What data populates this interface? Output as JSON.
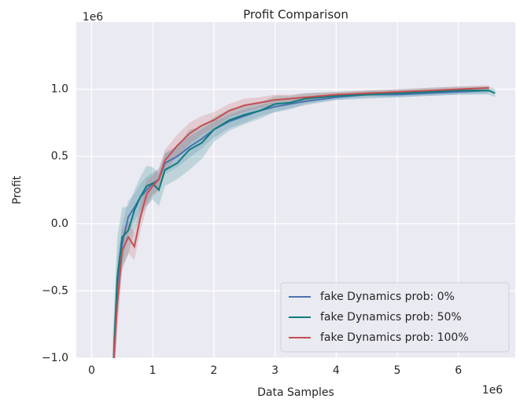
{
  "chart_data": {
    "type": "line",
    "title": "Profit Comparison",
    "xlabel": "Data Samples",
    "ylabel": "Profit",
    "x_offset_label": "1e6",
    "y_offset_label": "1e6",
    "xlim": [
      -0.25,
      6.93
    ],
    "ylim": [
      -1.0,
      1.5
    ],
    "xticks": [
      0,
      1,
      2,
      3,
      4,
      5,
      6
    ],
    "yticks": [
      {
        "value": -1.0,
        "label": "−1.0"
      },
      {
        "value": -0.5,
        "label": "−0.5"
      },
      {
        "value": 0.0,
        "label": "0.0"
      },
      {
        "value": 0.5,
        "label": "0.5"
      },
      {
        "value": 1.0,
        "label": "1.0"
      }
    ],
    "grid": true,
    "legend": "lower right",
    "series": [
      {
        "name": "fake Dynamics prob: 0%",
        "color": "#4c72b0",
        "x": [
          0.35,
          0.42,
          0.5,
          0.6,
          0.7,
          0.8,
          0.9,
          1.0,
          1.1,
          1.2,
          1.4,
          1.6,
          1.8,
          2.0,
          2.25,
          2.5,
          2.75,
          3.0,
          3.25,
          3.5,
          4.0,
          4.5,
          5.0,
          5.5,
          6.0,
          6.5
        ],
        "values": [
          -1.1,
          -0.45,
          -0.15,
          0.05,
          0.12,
          0.2,
          0.25,
          0.3,
          0.33,
          0.45,
          0.5,
          0.57,
          0.63,
          0.7,
          0.76,
          0.8,
          0.84,
          0.87,
          0.89,
          0.91,
          0.94,
          0.96,
          0.96,
          0.97,
          0.98,
          0.99
        ],
        "lower": [
          -1.3,
          -0.65,
          -0.3,
          -0.07,
          0.02,
          0.1,
          0.15,
          0.22,
          0.25,
          0.37,
          0.42,
          0.49,
          0.56,
          0.64,
          0.71,
          0.75,
          0.8,
          0.83,
          0.86,
          0.88,
          0.92,
          0.94,
          0.94,
          0.95,
          0.96,
          0.97
        ],
        "upper": [
          -0.9,
          -0.25,
          0,
          0.17,
          0.22,
          0.3,
          0.35,
          0.38,
          0.41,
          0.53,
          0.58,
          0.65,
          0.7,
          0.76,
          0.81,
          0.85,
          0.88,
          0.91,
          0.92,
          0.94,
          0.96,
          0.98,
          0.98,
          0.99,
          1.0,
          1.01
        ]
      },
      {
        "name": "fake Dynamics prob: 50%",
        "color": "#0e7c7b",
        "x": [
          0.35,
          0.42,
          0.5,
          0.6,
          0.7,
          0.8,
          0.9,
          1.0,
          1.1,
          1.2,
          1.4,
          1.6,
          1.8,
          2.0,
          2.25,
          2.5,
          2.75,
          3.0,
          3.25,
          3.5,
          4.0,
          4.5,
          5.0,
          5.5,
          6.0,
          6.5,
          6.6
        ],
        "values": [
          -1.1,
          -0.4,
          -0.1,
          -0.05,
          0.1,
          0.2,
          0.28,
          0.3,
          0.25,
          0.4,
          0.45,
          0.55,
          0.6,
          0.7,
          0.77,
          0.81,
          0.84,
          0.89,
          0.9,
          0.93,
          0.95,
          0.96,
          0.97,
          0.98,
          0.99,
          0.99,
          0.97
        ],
        "lower": [
          -1.4,
          -0.7,
          -0.32,
          -0.23,
          -0.05,
          0.05,
          0.13,
          0.18,
          0.13,
          0.28,
          0.33,
          0.4,
          0.48,
          0.61,
          0.69,
          0.74,
          0.78,
          0.83,
          0.85,
          0.89,
          0.92,
          0.93,
          0.94,
          0.95,
          0.96,
          0.96,
          0.94
        ],
        "upper": [
          -0.8,
          -0.1,
          0.12,
          0.13,
          0.25,
          0.35,
          0.43,
          0.42,
          0.37,
          0.52,
          0.57,
          0.7,
          0.72,
          0.79,
          0.85,
          0.88,
          0.9,
          0.95,
          0.95,
          0.97,
          0.98,
          0.99,
          1.0,
          1.01,
          1.02,
          1.02,
          1.0
        ]
      },
      {
        "name": "fake Dynamics prob: 100%",
        "color": "#c44e52",
        "x": [
          0.35,
          0.42,
          0.5,
          0.6,
          0.7,
          0.8,
          0.9,
          1.0,
          1.1,
          1.2,
          1.4,
          1.6,
          1.8,
          2.0,
          2.25,
          2.5,
          2.75,
          3.0,
          3.25,
          3.5,
          4.0,
          4.5,
          5.0,
          5.5,
          6.0,
          6.5
        ],
        "values": [
          -1.1,
          -0.6,
          -0.2,
          -0.1,
          -0.17,
          0.05,
          0.22,
          0.28,
          0.33,
          0.47,
          0.58,
          0.67,
          0.73,
          0.77,
          0.84,
          0.88,
          0.9,
          0.92,
          0.93,
          0.94,
          0.96,
          0.97,
          0.98,
          0.99,
          1.0,
          1.01
        ],
        "lower": [
          -1.3,
          -0.8,
          -0.35,
          -0.22,
          -0.27,
          -0.05,
          0.12,
          0.2,
          0.25,
          0.39,
          0.5,
          0.59,
          0.66,
          0.71,
          0.79,
          0.83,
          0.86,
          0.88,
          0.9,
          0.91,
          0.94,
          0.95,
          0.96,
          0.97,
          0.98,
          0.99
        ],
        "upper": [
          -0.9,
          -0.4,
          -0.05,
          0.02,
          -0.07,
          0.15,
          0.32,
          0.36,
          0.41,
          0.55,
          0.66,
          0.75,
          0.8,
          0.83,
          0.89,
          0.93,
          0.94,
          0.96,
          0.96,
          0.97,
          0.98,
          0.99,
          1.0,
          1.01,
          1.02,
          1.03
        ]
      }
    ]
  }
}
